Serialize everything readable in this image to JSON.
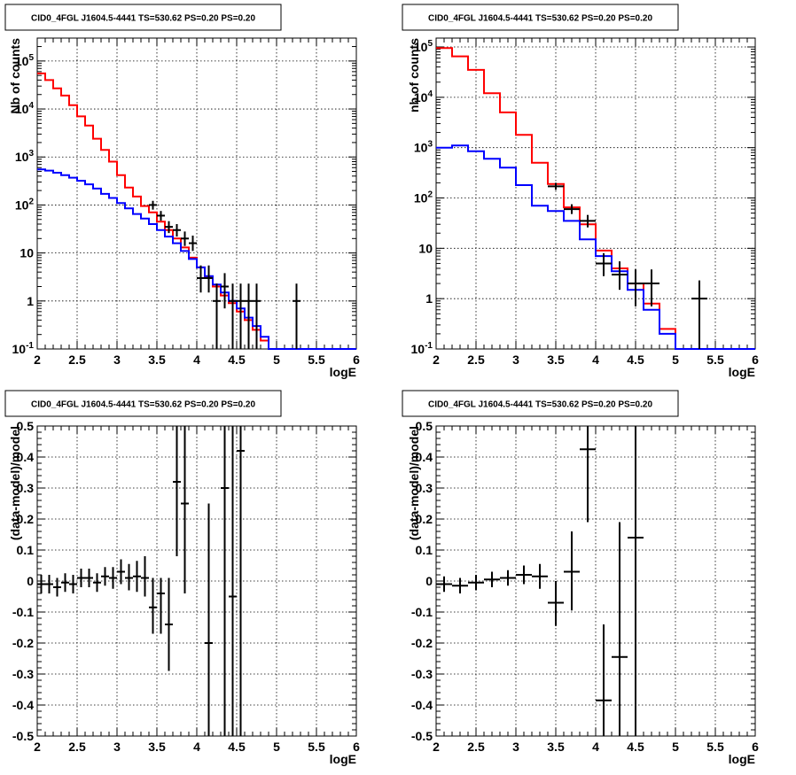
{
  "colors": {
    "data": "#000000",
    "model_total": "#ff0000",
    "model_source": "#0000ff"
  },
  "chart_data": [
    {
      "id": "counts-left",
      "type": "line",
      "title": "CID0_4FGL J1604.5-4441 TS=530.62 PS=0.20 PS=0.20",
      "xlabel": "logE",
      "ylabel": "Nb of counts",
      "xlim": [
        2,
        6
      ],
      "ylim": [
        0.1,
        300000
      ],
      "yscale": "log",
      "grid": true,
      "x_ticks": [
        "2",
        "2.5",
        "3",
        "3.5",
        "4",
        "4.5",
        "5",
        "5.5",
        "6"
      ],
      "y_ticks": [
        "10^-1",
        "1",
        "10",
        "10^2",
        "10^3",
        "10^4",
        "10^5"
      ],
      "bin_edges": [
        2.0,
        2.1,
        2.2,
        2.3,
        2.4,
        2.5,
        2.6,
        2.7,
        2.8,
        2.9,
        3.0,
        3.1,
        3.2,
        3.3,
        3.4,
        3.5,
        3.6,
        3.7,
        3.8,
        3.9,
        4.0,
        4.1,
        4.2,
        4.3,
        4.4,
        4.5,
        4.6,
        4.7,
        4.8,
        4.9,
        5.0,
        5.1,
        5.2,
        5.3,
        5.4,
        5.5,
        5.6,
        5.7,
        5.8,
        5.9,
        6.0
      ],
      "series": [
        {
          "role": "model_total",
          "values": [
            55000,
            40000,
            27000,
            19000,
            12000,
            7000,
            4500,
            2400,
            1400,
            800,
            420,
            230,
            150,
            95,
            70,
            45,
            30,
            20,
            13,
            8,
            5,
            3.2,
            2,
            1.3,
            0.9,
            0.6,
            0.4,
            0.25,
            0.15,
            0.1,
            0.1,
            0.1,
            0.1,
            0.1,
            0.1,
            0.1,
            0.1,
            0.1,
            0.1,
            0.1
          ]
        },
        {
          "role": "model_source",
          "values": [
            550,
            520,
            470,
            420,
            370,
            320,
            270,
            220,
            170,
            140,
            110,
            85,
            65,
            52,
            40,
            30,
            22,
            16,
            11,
            7.5,
            5,
            3.3,
            2.2,
            1.5,
            1,
            0.7,
            0.45,
            0.3,
            0.18,
            0.1,
            0.1,
            0.1,
            0.1,
            0.1,
            0.1,
            0.1,
            0.1,
            0.1,
            0.1,
            0.1
          ]
        },
        {
          "role": "data",
          "points": [
            {
              "x": 3.45,
              "y": 100,
              "xerr": 0.05,
              "ylo": 80,
              "yhi": 122
            },
            {
              "x": 3.55,
              "y": 60,
              "xerr": 0.05,
              "ylo": 47,
              "yhi": 75
            },
            {
              "x": 3.65,
              "y": 35,
              "xerr": 0.05,
              "ylo": 26,
              "yhi": 46
            },
            {
              "x": 3.75,
              "y": 30,
              "xerr": 0.05,
              "ylo": 22,
              "yhi": 40
            },
            {
              "x": 3.85,
              "y": 20,
              "xerr": 0.05,
              "ylo": 14,
              "yhi": 28
            },
            {
              "x": 3.95,
              "y": 16,
              "xerr": 0.05,
              "ylo": 11,
              "yhi": 23
            },
            {
              "x": 4.05,
              "y": 3,
              "xerr": 0.05,
              "ylo": 1.5,
              "yhi": 5.5
            },
            {
              "x": 4.15,
              "y": 3,
              "xerr": 0.05,
              "ylo": 1.5,
              "yhi": 5.5
            },
            {
              "x": 4.25,
              "y": 1,
              "xerr": 0.05,
              "ylo": 0.1,
              "yhi": 2.3
            },
            {
              "x": 4.35,
              "y": 2,
              "xerr": 0.05,
              "ylo": 0.7,
              "yhi": 3.8
            },
            {
              "x": 4.45,
              "y": 1,
              "xerr": 0.05,
              "ylo": 0.1,
              "yhi": 2.3
            },
            {
              "x": 4.55,
              "y": 1,
              "xerr": 0.05,
              "ylo": 0.1,
              "yhi": 2.3
            },
            {
              "x": 4.65,
              "y": 1,
              "xerr": 0.05,
              "ylo": 0.1,
              "yhi": 2.3
            },
            {
              "x": 4.75,
              "y": 1,
              "xerr": 0.05,
              "ylo": 0.1,
              "yhi": 2.3
            },
            {
              "x": 5.25,
              "y": 1,
              "xerr": 0.05,
              "ylo": 0.1,
              "yhi": 2.3
            }
          ]
        }
      ]
    },
    {
      "id": "counts-right",
      "type": "line",
      "title": "CID0_4FGL J1604.5-4441 TS=530.62 PS=0.20 PS=0.20",
      "xlabel": "logE",
      "ylabel": "nb of counts",
      "xlim": [
        2,
        6
      ],
      "ylim": [
        0.1,
        150000
      ],
      "yscale": "log",
      "grid": true,
      "x_ticks": [
        "2",
        "2.5",
        "3",
        "3.5",
        "4",
        "4.5",
        "5",
        "5.5",
        "6"
      ],
      "y_ticks": [
        "10^-1",
        "1",
        "10",
        "10^2",
        "10^3",
        "10^4",
        "10^5"
      ],
      "bin_edges": [
        2.0,
        2.2,
        2.4,
        2.6,
        2.8,
        3.0,
        3.2,
        3.4,
        3.6,
        3.8,
        4.0,
        4.2,
        4.4,
        4.6,
        4.8,
        5.0,
        5.2,
        5.4,
        5.6,
        5.8,
        6.0
      ],
      "series": [
        {
          "role": "model_total",
          "values": [
            95000,
            65000,
            35000,
            12000,
            5000,
            1800,
            500,
            190,
            65,
            30,
            9,
            4,
            2,
            0.8,
            0.25,
            0.1,
            0.1,
            0.1,
            0.1,
            0.1
          ]
        },
        {
          "role": "model_source",
          "values": [
            1000,
            1100,
            850,
            600,
            400,
            180,
            70,
            55,
            35,
            15,
            7,
            3.5,
            1.5,
            0.6,
            0.2,
            0.1,
            0.1,
            0.1,
            0.1,
            0.1
          ]
        },
        {
          "role": "data",
          "points": [
            {
              "x": 3.5,
              "y": 170,
              "xerr": 0.1,
              "ylo": 145,
              "yhi": 200
            },
            {
              "x": 3.7,
              "y": 60,
              "xerr": 0.1,
              "ylo": 48,
              "yhi": 75
            },
            {
              "x": 3.9,
              "y": 35,
              "xerr": 0.1,
              "ylo": 26,
              "yhi": 46
            },
            {
              "x": 4.1,
              "y": 5,
              "xerr": 0.1,
              "ylo": 2.8,
              "yhi": 8
            },
            {
              "x": 4.3,
              "y": 3,
              "xerr": 0.1,
              "ylo": 1.5,
              "yhi": 5.5
            },
            {
              "x": 4.5,
              "y": 2,
              "xerr": 0.1,
              "ylo": 0.7,
              "yhi": 3.8
            },
            {
              "x": 4.7,
              "y": 2,
              "xerr": 0.1,
              "ylo": 0.7,
              "yhi": 3.8
            },
            {
              "x": 5.3,
              "y": 1,
              "xerr": 0.1,
              "ylo": 0.1,
              "yhi": 2.3
            }
          ]
        }
      ]
    },
    {
      "id": "residuals-left",
      "type": "scatter",
      "title": "CID0_4FGL J1604.5-4441 TS=530.62 PS=0.20 PS=0.20",
      "xlabel": "logE",
      "ylabel": "(data-model)/model",
      "xlim": [
        2,
        6
      ],
      "ylim": [
        -0.5,
        0.5
      ],
      "yscale": "linear",
      "grid": true,
      "x_ticks": [
        "2",
        "2.5",
        "3",
        "3.5",
        "4",
        "4.5",
        "5",
        "5.5",
        "6"
      ],
      "y_ticks": [
        "-0.5",
        "-0.4",
        "-0.3",
        "-0.2",
        "-0.1",
        "0",
        "0.1",
        "0.2",
        "0.3",
        "0.4",
        "0.5"
      ],
      "series": [
        {
          "role": "data",
          "points": [
            {
              "x": 2.05,
              "y": -0.01,
              "xerr": 0.05,
              "ylo": -0.04,
              "yhi": 0.02
            },
            {
              "x": 2.15,
              "y": -0.01,
              "xerr": 0.05,
              "ylo": -0.04,
              "yhi": 0.02
            },
            {
              "x": 2.25,
              "y": -0.02,
              "xerr": 0.05,
              "ylo": -0.05,
              "yhi": 0.01
            },
            {
              "x": 2.35,
              "y": -0.005,
              "xerr": 0.05,
              "ylo": -0.035,
              "yhi": 0.025
            },
            {
              "x": 2.45,
              "y": -0.01,
              "xerr": 0.05,
              "ylo": -0.04,
              "yhi": 0.02
            },
            {
              "x": 2.55,
              "y": 0.01,
              "xerr": 0.05,
              "ylo": -0.02,
              "yhi": 0.04
            },
            {
              "x": 2.65,
              "y": 0.01,
              "xerr": 0.05,
              "ylo": -0.02,
              "yhi": 0.04
            },
            {
              "x": 2.75,
              "y": -0.005,
              "xerr": 0.05,
              "ylo": -0.035,
              "yhi": 0.025
            },
            {
              "x": 2.85,
              "y": 0.015,
              "xerr": 0.05,
              "ylo": -0.015,
              "yhi": 0.045
            },
            {
              "x": 2.95,
              "y": 0.01,
              "xerr": 0.05,
              "ylo": -0.025,
              "yhi": 0.045
            },
            {
              "x": 3.05,
              "y": 0.03,
              "xerr": 0.05,
              "ylo": -0.01,
              "yhi": 0.07
            },
            {
              "x": 3.15,
              "y": 0.01,
              "xerr": 0.05,
              "ylo": -0.03,
              "yhi": 0.055
            },
            {
              "x": 3.25,
              "y": 0.015,
              "xerr": 0.05,
              "ylo": -0.035,
              "yhi": 0.065
            },
            {
              "x": 3.35,
              "y": 0.01,
              "xerr": 0.05,
              "ylo": -0.05,
              "yhi": 0.08
            },
            {
              "x": 3.45,
              "y": -0.085,
              "xerr": 0.05,
              "ylo": -0.17,
              "yhi": 0.01
            },
            {
              "x": 3.55,
              "y": -0.04,
              "xerr": 0.05,
              "ylo": -0.17,
              "yhi": 0.01
            },
            {
              "x": 3.65,
              "y": -0.14,
              "xerr": 0.05,
              "ylo": -0.29,
              "yhi": 0.01
            },
            {
              "x": 3.75,
              "y": 0.32,
              "xerr": 0.05,
              "ylo": 0.08,
              "yhi": 0.5
            },
            {
              "x": 3.85,
              "y": 0.25,
              "xerr": 0.05,
              "ylo": -0.04,
              "yhi": 0.5
            },
            {
              "x": 4.15,
              "y": -0.2,
              "xerr": 0.05,
              "ylo": -0.5,
              "yhi": 0.25
            },
            {
              "x": 4.35,
              "y": 0.3,
              "xerr": 0.05,
              "ylo": -0.5,
              "yhi": 0.5
            },
            {
              "x": 4.45,
              "y": -0.05,
              "xerr": 0.05,
              "ylo": -0.5,
              "yhi": 0.5
            },
            {
              "x": 4.55,
              "y": 0.42,
              "xerr": 0.05,
              "ylo": -0.5,
              "yhi": 0.5
            }
          ]
        }
      ]
    },
    {
      "id": "residuals-right",
      "type": "scatter",
      "title": "CID0_4FGL J1604.5-4441 TS=530.62 PS=0.20 PS=0.20",
      "xlabel": "logE",
      "ylabel": "(data-model)/model",
      "xlim": [
        2,
        6
      ],
      "ylim": [
        -0.5,
        0.5
      ],
      "yscale": "linear",
      "grid": true,
      "x_ticks": [
        "2",
        "2.5",
        "3",
        "3.5",
        "4",
        "4.5",
        "5",
        "5.5",
        "6"
      ],
      "y_ticks": [
        "-0.5",
        "-0.4",
        "-0.3",
        "-0.2",
        "-0.1",
        "0",
        "0.1",
        "0.2",
        "0.3",
        "0.4",
        "0.5"
      ],
      "series": [
        {
          "role": "data",
          "points": [
            {
              "x": 2.1,
              "y": -0.01,
              "xerr": 0.1,
              "ylo": -0.035,
              "yhi": 0.015
            },
            {
              "x": 2.3,
              "y": -0.015,
              "xerr": 0.1,
              "ylo": -0.04,
              "yhi": 0.01
            },
            {
              "x": 2.5,
              "y": -0.005,
              "xerr": 0.1,
              "ylo": -0.03,
              "yhi": 0.02
            },
            {
              "x": 2.7,
              "y": 0.005,
              "xerr": 0.1,
              "ylo": -0.02,
              "yhi": 0.03
            },
            {
              "x": 2.9,
              "y": 0.01,
              "xerr": 0.1,
              "ylo": -0.015,
              "yhi": 0.035
            },
            {
              "x": 3.1,
              "y": 0.02,
              "xerr": 0.1,
              "ylo": -0.01,
              "yhi": 0.05
            },
            {
              "x": 3.3,
              "y": 0.015,
              "xerr": 0.1,
              "ylo": -0.025,
              "yhi": 0.055
            },
            {
              "x": 3.5,
              "y": -0.07,
              "xerr": 0.1,
              "ylo": -0.145,
              "yhi": 0.0
            },
            {
              "x": 3.7,
              "y": 0.03,
              "xerr": 0.1,
              "ylo": -0.095,
              "yhi": 0.16
            },
            {
              "x": 3.9,
              "y": 0.425,
              "xerr": 0.1,
              "ylo": 0.19,
              "yhi": 0.5
            },
            {
              "x": 4.1,
              "y": -0.385,
              "xerr": 0.1,
              "ylo": -0.5,
              "yhi": -0.14
            },
            {
              "x": 4.3,
              "y": -0.245,
              "xerr": 0.1,
              "ylo": -0.5,
              "yhi": 0.19
            },
            {
              "x": 4.5,
              "y": 0.14,
              "xerr": 0.1,
              "ylo": -0.5,
              "yhi": 0.5
            }
          ]
        }
      ]
    }
  ]
}
